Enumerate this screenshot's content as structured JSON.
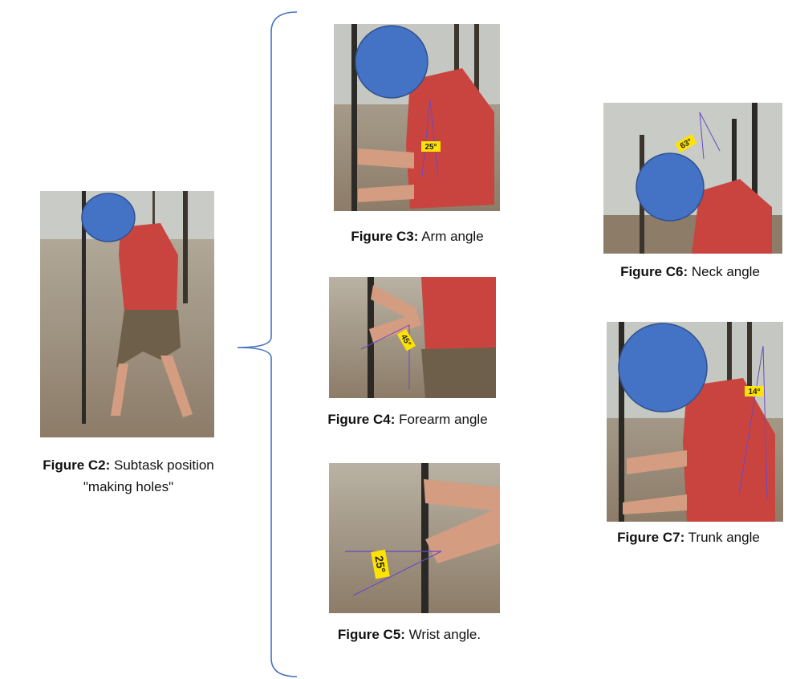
{
  "figures": [
    {
      "label": "Figure C2:",
      "caption": [
        "Subtask position",
        "\"making holes\""
      ]
    },
    {
      "label": "Figure C3:",
      "caption": [
        "Arm angle"
      ],
      "angle": "25°"
    },
    {
      "label": "Figure C4:",
      "caption": [
        "Forearm angle"
      ],
      "angle": "45°"
    },
    {
      "label": "Figure C5:",
      "caption": [
        "Wrist angle."
      ],
      "angle": "25°"
    },
    {
      "label": "Figure C6:",
      "caption": [
        "Neck angle"
      ],
      "angle": "63°"
    },
    {
      "label": "Figure C7:",
      "caption": [
        "Trunk angle"
      ],
      "angle": "14°"
    }
  ]
}
